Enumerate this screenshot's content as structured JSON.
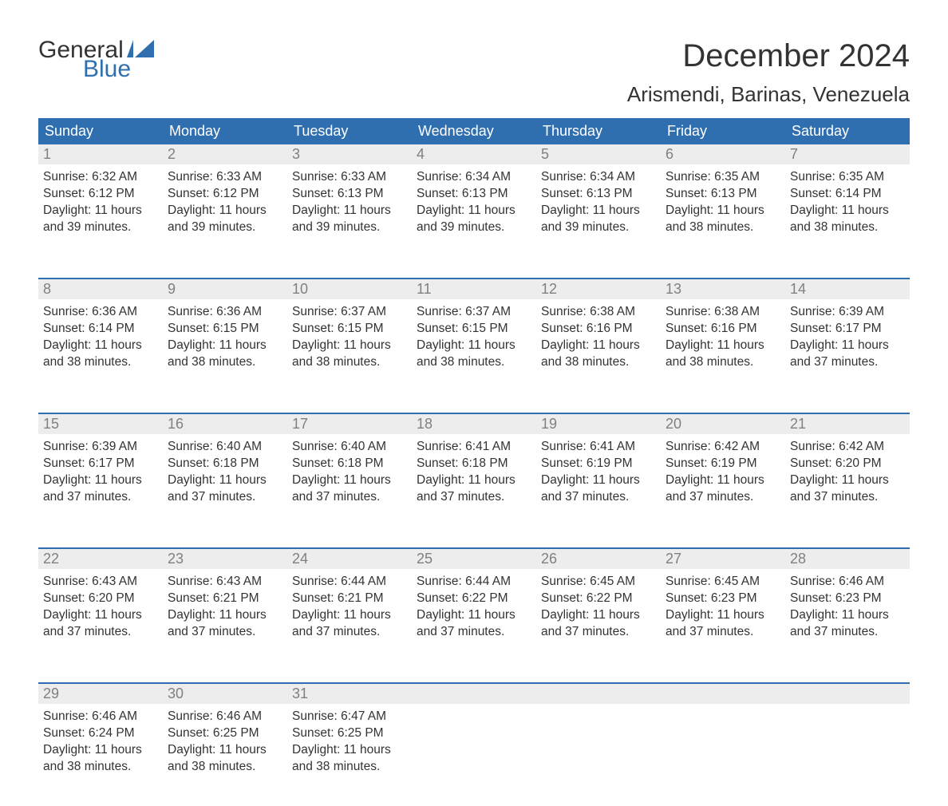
{
  "brand": {
    "line1": "General",
    "line2": "Blue",
    "flag_color": "#2f6fb0"
  },
  "title": {
    "month": "December 2024",
    "location": "Arismendi, Barinas, Venezuela",
    "title_fontsize": 40,
    "location_fontsize": 26,
    "text_color": "#333333"
  },
  "styling": {
    "header_bg": "#2f6fb0",
    "header_text": "#ffffff",
    "daynum_bg": "#ededed",
    "daynum_text": "#808080",
    "body_text": "#333333",
    "week_divider": "#2f6fb0",
    "background": "#ffffff",
    "cell_fontsize": 15.5
  },
  "day_headers": [
    "Sunday",
    "Monday",
    "Tuesday",
    "Wednesday",
    "Thursday",
    "Friday",
    "Saturday"
  ],
  "weeks": [
    [
      {
        "num": "1",
        "sunrise": "Sunrise: 6:32 AM",
        "sunset": "Sunset: 6:12 PM",
        "dl1": "Daylight: 11 hours",
        "dl2": "and 39 minutes."
      },
      {
        "num": "2",
        "sunrise": "Sunrise: 6:33 AM",
        "sunset": "Sunset: 6:12 PM",
        "dl1": "Daylight: 11 hours",
        "dl2": "and 39 minutes."
      },
      {
        "num": "3",
        "sunrise": "Sunrise: 6:33 AM",
        "sunset": "Sunset: 6:13 PM",
        "dl1": "Daylight: 11 hours",
        "dl2": "and 39 minutes."
      },
      {
        "num": "4",
        "sunrise": "Sunrise: 6:34 AM",
        "sunset": "Sunset: 6:13 PM",
        "dl1": "Daylight: 11 hours",
        "dl2": "and 39 minutes."
      },
      {
        "num": "5",
        "sunrise": "Sunrise: 6:34 AM",
        "sunset": "Sunset: 6:13 PM",
        "dl1": "Daylight: 11 hours",
        "dl2": "and 39 minutes."
      },
      {
        "num": "6",
        "sunrise": "Sunrise: 6:35 AM",
        "sunset": "Sunset: 6:13 PM",
        "dl1": "Daylight: 11 hours",
        "dl2": "and 38 minutes."
      },
      {
        "num": "7",
        "sunrise": "Sunrise: 6:35 AM",
        "sunset": "Sunset: 6:14 PM",
        "dl1": "Daylight: 11 hours",
        "dl2": "and 38 minutes."
      }
    ],
    [
      {
        "num": "8",
        "sunrise": "Sunrise: 6:36 AM",
        "sunset": "Sunset: 6:14 PM",
        "dl1": "Daylight: 11 hours",
        "dl2": "and 38 minutes."
      },
      {
        "num": "9",
        "sunrise": "Sunrise: 6:36 AM",
        "sunset": "Sunset: 6:15 PM",
        "dl1": "Daylight: 11 hours",
        "dl2": "and 38 minutes."
      },
      {
        "num": "10",
        "sunrise": "Sunrise: 6:37 AM",
        "sunset": "Sunset: 6:15 PM",
        "dl1": "Daylight: 11 hours",
        "dl2": "and 38 minutes."
      },
      {
        "num": "11",
        "sunrise": "Sunrise: 6:37 AM",
        "sunset": "Sunset: 6:15 PM",
        "dl1": "Daylight: 11 hours",
        "dl2": "and 38 minutes."
      },
      {
        "num": "12",
        "sunrise": "Sunrise: 6:38 AM",
        "sunset": "Sunset: 6:16 PM",
        "dl1": "Daylight: 11 hours",
        "dl2": "and 38 minutes."
      },
      {
        "num": "13",
        "sunrise": "Sunrise: 6:38 AM",
        "sunset": "Sunset: 6:16 PM",
        "dl1": "Daylight: 11 hours",
        "dl2": "and 38 minutes."
      },
      {
        "num": "14",
        "sunrise": "Sunrise: 6:39 AM",
        "sunset": "Sunset: 6:17 PM",
        "dl1": "Daylight: 11 hours",
        "dl2": "and 37 minutes."
      }
    ],
    [
      {
        "num": "15",
        "sunrise": "Sunrise: 6:39 AM",
        "sunset": "Sunset: 6:17 PM",
        "dl1": "Daylight: 11 hours",
        "dl2": "and 37 minutes."
      },
      {
        "num": "16",
        "sunrise": "Sunrise: 6:40 AM",
        "sunset": "Sunset: 6:18 PM",
        "dl1": "Daylight: 11 hours",
        "dl2": "and 37 minutes."
      },
      {
        "num": "17",
        "sunrise": "Sunrise: 6:40 AM",
        "sunset": "Sunset: 6:18 PM",
        "dl1": "Daylight: 11 hours",
        "dl2": "and 37 minutes."
      },
      {
        "num": "18",
        "sunrise": "Sunrise: 6:41 AM",
        "sunset": "Sunset: 6:18 PM",
        "dl1": "Daylight: 11 hours",
        "dl2": "and 37 minutes."
      },
      {
        "num": "19",
        "sunrise": "Sunrise: 6:41 AM",
        "sunset": "Sunset: 6:19 PM",
        "dl1": "Daylight: 11 hours",
        "dl2": "and 37 minutes."
      },
      {
        "num": "20",
        "sunrise": "Sunrise: 6:42 AM",
        "sunset": "Sunset: 6:19 PM",
        "dl1": "Daylight: 11 hours",
        "dl2": "and 37 minutes."
      },
      {
        "num": "21",
        "sunrise": "Sunrise: 6:42 AM",
        "sunset": "Sunset: 6:20 PM",
        "dl1": "Daylight: 11 hours",
        "dl2": "and 37 minutes."
      }
    ],
    [
      {
        "num": "22",
        "sunrise": "Sunrise: 6:43 AM",
        "sunset": "Sunset: 6:20 PM",
        "dl1": "Daylight: 11 hours",
        "dl2": "and 37 minutes."
      },
      {
        "num": "23",
        "sunrise": "Sunrise: 6:43 AM",
        "sunset": "Sunset: 6:21 PM",
        "dl1": "Daylight: 11 hours",
        "dl2": "and 37 minutes."
      },
      {
        "num": "24",
        "sunrise": "Sunrise: 6:44 AM",
        "sunset": "Sunset: 6:21 PM",
        "dl1": "Daylight: 11 hours",
        "dl2": "and 37 minutes."
      },
      {
        "num": "25",
        "sunrise": "Sunrise: 6:44 AM",
        "sunset": "Sunset: 6:22 PM",
        "dl1": "Daylight: 11 hours",
        "dl2": "and 37 minutes."
      },
      {
        "num": "26",
        "sunrise": "Sunrise: 6:45 AM",
        "sunset": "Sunset: 6:22 PM",
        "dl1": "Daylight: 11 hours",
        "dl2": "and 37 minutes."
      },
      {
        "num": "27",
        "sunrise": "Sunrise: 6:45 AM",
        "sunset": "Sunset: 6:23 PM",
        "dl1": "Daylight: 11 hours",
        "dl2": "and 37 minutes."
      },
      {
        "num": "28",
        "sunrise": "Sunrise: 6:46 AM",
        "sunset": "Sunset: 6:23 PM",
        "dl1": "Daylight: 11 hours",
        "dl2": "and 37 minutes."
      }
    ],
    [
      {
        "num": "29",
        "sunrise": "Sunrise: 6:46 AM",
        "sunset": "Sunset: 6:24 PM",
        "dl1": "Daylight: 11 hours",
        "dl2": "and 38 minutes."
      },
      {
        "num": "30",
        "sunrise": "Sunrise: 6:46 AM",
        "sunset": "Sunset: 6:25 PM",
        "dl1": "Daylight: 11 hours",
        "dl2": "and 38 minutes."
      },
      {
        "num": "31",
        "sunrise": "Sunrise: 6:47 AM",
        "sunset": "Sunset: 6:25 PM",
        "dl1": "Daylight: 11 hours",
        "dl2": "and 38 minutes."
      },
      null,
      null,
      null,
      null
    ]
  ]
}
